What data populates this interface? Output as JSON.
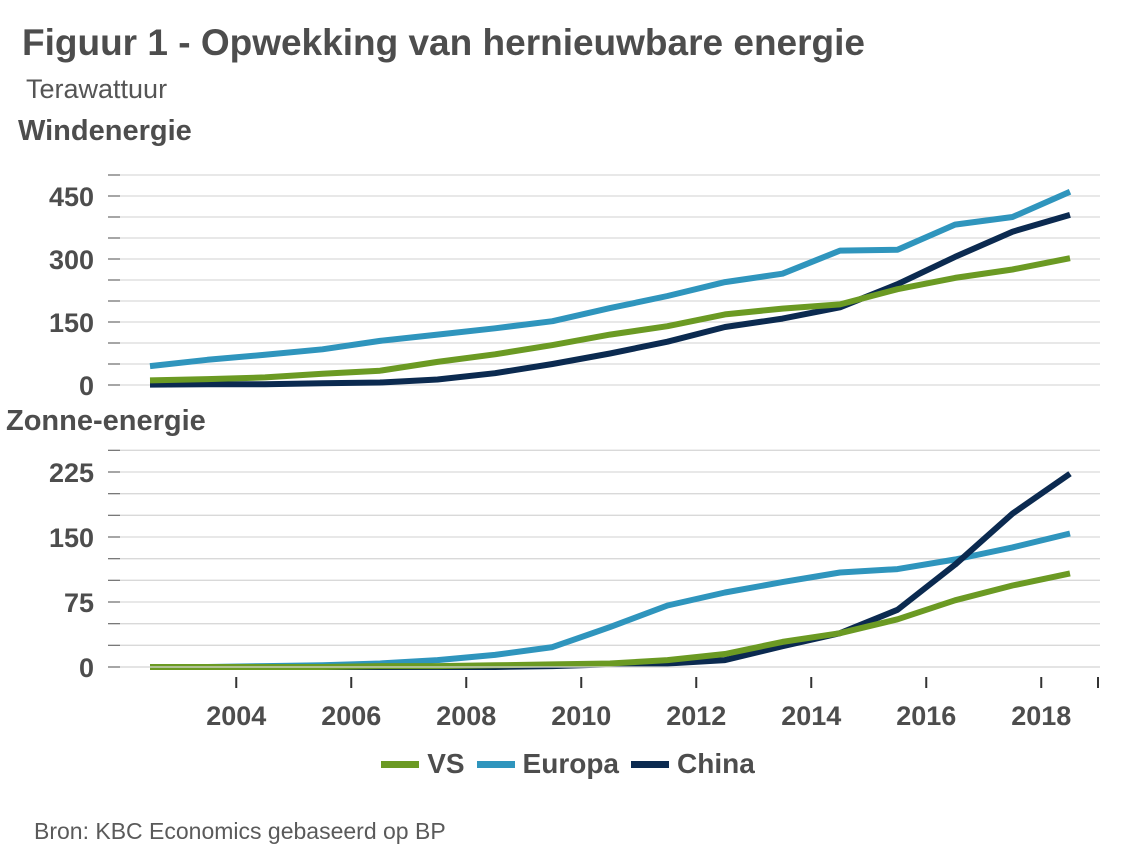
{
  "title": "Figuur 1 - Opwekking van hernieuwbare energie",
  "subtitle": "Terawattuur",
  "source": "Bron: KBC Economics gebaseerd op BP",
  "colors": {
    "VS": "#6b9a23",
    "Europa": "#2f95bd",
    "China": "#0b2a50",
    "grid": "#d9d9d9",
    "axis": "#333333"
  },
  "legend": [
    {
      "name": "VS",
      "color": "#6b9a23"
    },
    {
      "name": "Europa",
      "color": "#2f95bd"
    },
    {
      "name": "China",
      "color": "#0b2a50"
    }
  ],
  "chart_data": [
    {
      "type": "line",
      "title": "Windenergie",
      "x": [
        2003,
        2004,
        2005,
        2006,
        2007,
        2008,
        2009,
        2010,
        2011,
        2012,
        2013,
        2014,
        2015,
        2016,
        2017,
        2018,
        2019
      ],
      "ylim": [
        0,
        450
      ],
      "yticks": [
        0,
        150,
        300,
        450
      ],
      "grid": true,
      "series": [
        {
          "name": "Europa",
          "values": [
            45,
            60,
            72,
            85,
            105,
            120,
            135,
            152,
            183,
            212,
            245,
            265,
            320,
            322,
            382,
            400,
            460
          ]
        },
        {
          "name": "China",
          "values": [
            1,
            2,
            2,
            4,
            6,
            13,
            28,
            50,
            75,
            103,
            138,
            158,
            185,
            240,
            305,
            365,
            405
          ]
        },
        {
          "name": "VS",
          "values": [
            11,
            14,
            18,
            27,
            34,
            55,
            73,
            95,
            120,
            140,
            168,
            182,
            192,
            228,
            255,
            275,
            302
          ]
        }
      ]
    },
    {
      "type": "line",
      "title": "Zonne-energie",
      "x": [
        2003,
        2004,
        2005,
        2006,
        2007,
        2008,
        2009,
        2010,
        2011,
        2012,
        2013,
        2014,
        2015,
        2016,
        2017,
        2018,
        2019
      ],
      "ylim": [
        0,
        225
      ],
      "yticks": [
        0,
        75,
        150,
        225
      ],
      "grid": true,
      "series": [
        {
          "name": "Europa",
          "values": [
            0,
            0,
            1,
            2,
            4,
            8,
            14,
            23,
            46,
            71,
            86,
            98,
            109,
            113,
            124,
            138,
            154
          ]
        },
        {
          "name": "China",
          "values": [
            0,
            0,
            0,
            0,
            0,
            0,
            0,
            1,
            3,
            4,
            8,
            24,
            39,
            66,
            118,
            177,
            223
          ]
        },
        {
          "name": "VS",
          "values": [
            0,
            0,
            0,
            0,
            1,
            1,
            2,
            3,
            4,
            8,
            15,
            29,
            39,
            55,
            77,
            94,
            108
          ]
        }
      ]
    }
  ],
  "x_tick_labels": [
    "2004",
    "2006",
    "2008",
    "2010",
    "2012",
    "2014",
    "2016",
    "2018"
  ],
  "x_tick_years": [
    2004,
    2006,
    2008,
    2010,
    2012,
    2014,
    2016,
    2018
  ]
}
